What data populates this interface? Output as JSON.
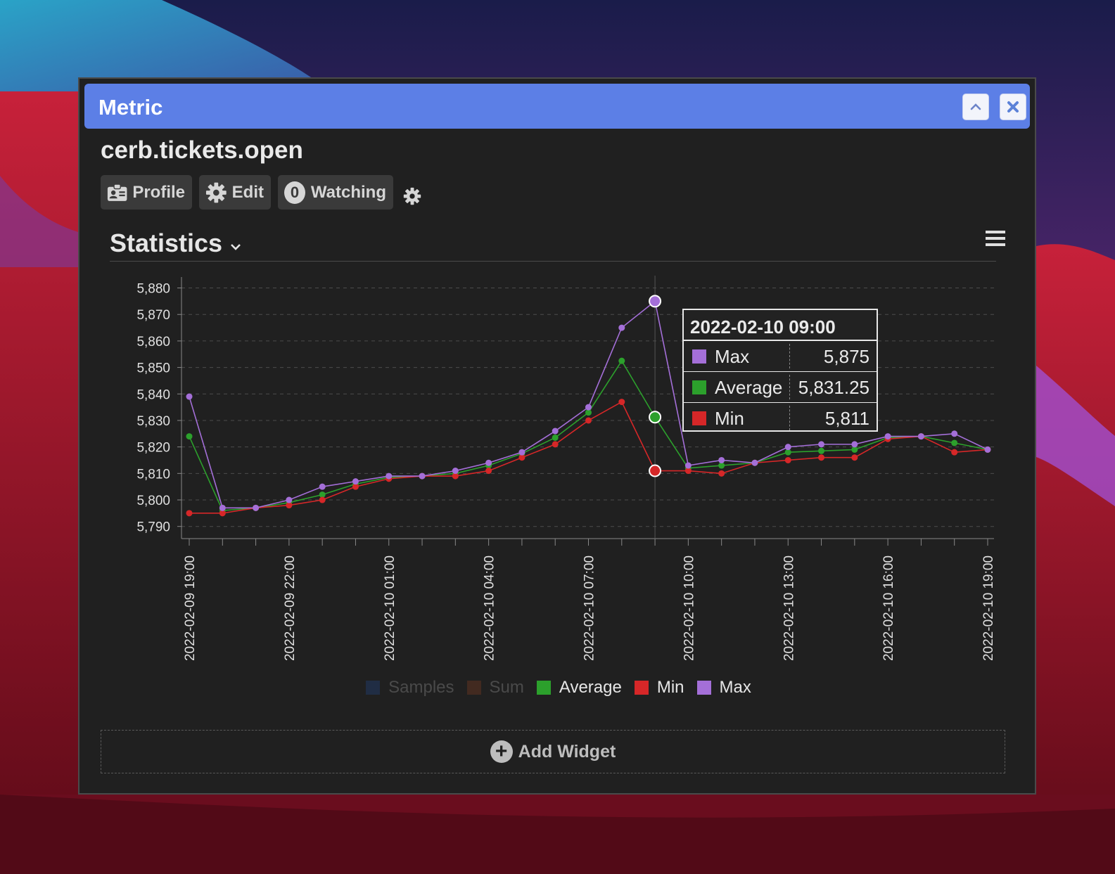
{
  "window": {
    "title": "Metric",
    "collapse_icon": "chevron-up-icon",
    "close_icon": "close-icon",
    "accent": "#5c7fe6"
  },
  "record": {
    "name": "cerb.tickets.open"
  },
  "toolbar": {
    "profile_label": "Profile",
    "edit_label": "Edit",
    "watching_count": "0",
    "watching_label": "Watching"
  },
  "tab": {
    "title": "Statistics"
  },
  "tooltip": {
    "title": "2022-02-10 09:00",
    "rows": [
      {
        "name": "Max",
        "value": "5,875",
        "color": "#a46fd8"
      },
      {
        "name": "Average",
        "value": "5,831.25",
        "color": "#2ca02c"
      },
      {
        "name": "Min",
        "value": "5,811",
        "color": "#d62728"
      }
    ]
  },
  "legend": [
    {
      "label": "Samples",
      "color": "#1f3a68",
      "active": false
    },
    {
      "label": "Sum",
      "color": "#5a3222",
      "active": false
    },
    {
      "label": "Average",
      "color": "#2ca02c",
      "active": true
    },
    {
      "label": "Min",
      "color": "#d62728",
      "active": true
    },
    {
      "label": "Max",
      "color": "#a46fd8",
      "active": true
    }
  ],
  "add_widget": {
    "label": "Add Widget"
  },
  "chart_data": {
    "type": "line",
    "ylim": [
      5787,
      5882
    ],
    "yticks": [
      5790,
      5800,
      5810,
      5820,
      5830,
      5840,
      5850,
      5860,
      5870,
      5880
    ],
    "ytick_labels": [
      "5,790",
      "5,800",
      "5,810",
      "5,820",
      "5,830",
      "5,840",
      "5,850",
      "5,860",
      "5,870",
      "5,880"
    ],
    "x": [
      "2022-02-09 19:00",
      "2022-02-09 20:00",
      "2022-02-09 21:00",
      "2022-02-09 22:00",
      "2022-02-09 23:00",
      "2022-02-10 00:00",
      "2022-02-10 01:00",
      "2022-02-10 02:00",
      "2022-02-10 03:00",
      "2022-02-10 04:00",
      "2022-02-10 05:00",
      "2022-02-10 06:00",
      "2022-02-10 07:00",
      "2022-02-10 08:00",
      "2022-02-10 09:00",
      "2022-02-10 10:00",
      "2022-02-10 11:00",
      "2022-02-10 12:00",
      "2022-02-10 13:00",
      "2022-02-10 14:00",
      "2022-02-10 15:00",
      "2022-02-10 16:00",
      "2022-02-10 17:00",
      "2022-02-10 18:00",
      "2022-02-10 19:00"
    ],
    "xtick_labels": [
      "2022-02-09 19:00",
      "",
      "",
      "2022-02-09 22:00",
      "",
      "",
      "2022-02-10 01:00",
      "",
      "",
      "2022-02-10 04:00",
      "",
      "",
      "2022-02-10 07:00",
      "",
      "",
      "2022-02-10 10:00",
      "",
      "",
      "2022-02-10 13:00",
      "",
      "",
      "2022-02-10 16:00",
      "",
      "",
      "2022-02-10 19:00"
    ],
    "highlight_index": 14,
    "grid": true,
    "legend_position": "bottom",
    "series": [
      {
        "name": "Average",
        "color": "#2ca02c",
        "values": [
          5824,
          5796,
          5797,
          5799,
          5802,
          5806,
          5808.5,
          5809,
          5810,
          5813,
          5817.5,
          5823.5,
          5833,
          5852.5,
          5831.25,
          5812,
          5813,
          5814,
          5818,
          5818.5,
          5819,
          5823.5,
          5824,
          5821.5,
          5819
        ]
      },
      {
        "name": "Min",
        "color": "#d62728",
        "values": [
          5795,
          5795,
          5797,
          5798,
          5800,
          5805,
          5808,
          5809,
          5809,
          5811,
          5816,
          5821,
          5830,
          5837,
          5811,
          5811,
          5810,
          5814,
          5815,
          5816,
          5816,
          5823,
          5824,
          5818,
          5819
        ]
      },
      {
        "name": "Max",
        "color": "#a46fd8",
        "values": [
          5839,
          5797,
          5797,
          5800,
          5805,
          5807,
          5809,
          5809,
          5811,
          5814,
          5818,
          5826,
          5835,
          5865,
          5875,
          5813,
          5815,
          5814,
          5820,
          5821,
          5821,
          5824,
          5824,
          5825,
          5819
        ]
      }
    ]
  }
}
